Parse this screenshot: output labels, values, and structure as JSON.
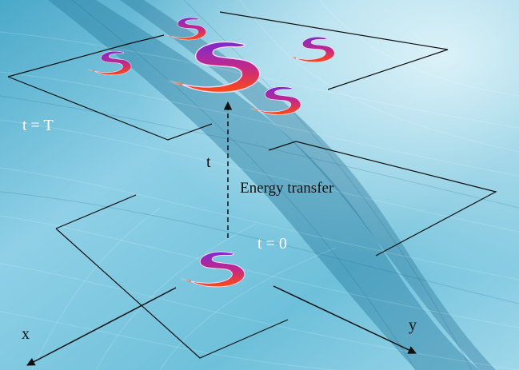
{
  "labels": {
    "time_top": "t = T",
    "time_bottom": "t = 0",
    "time_axis": "t",
    "energy": "Energy transfer",
    "axis_x": "x",
    "axis_y": "y"
  },
  "colors": {
    "background_light": "#bfe6f2",
    "background_mid": "#5fb8d3",
    "background_dark": "#2a7ea2",
    "vortex_top": "#7a2bd0",
    "vortex_mid": "#c2288a",
    "vortex_bottom": "#ff4a12",
    "line": "#111111"
  },
  "icons": {
    "vortex": "swirl-vortex-icon"
  }
}
